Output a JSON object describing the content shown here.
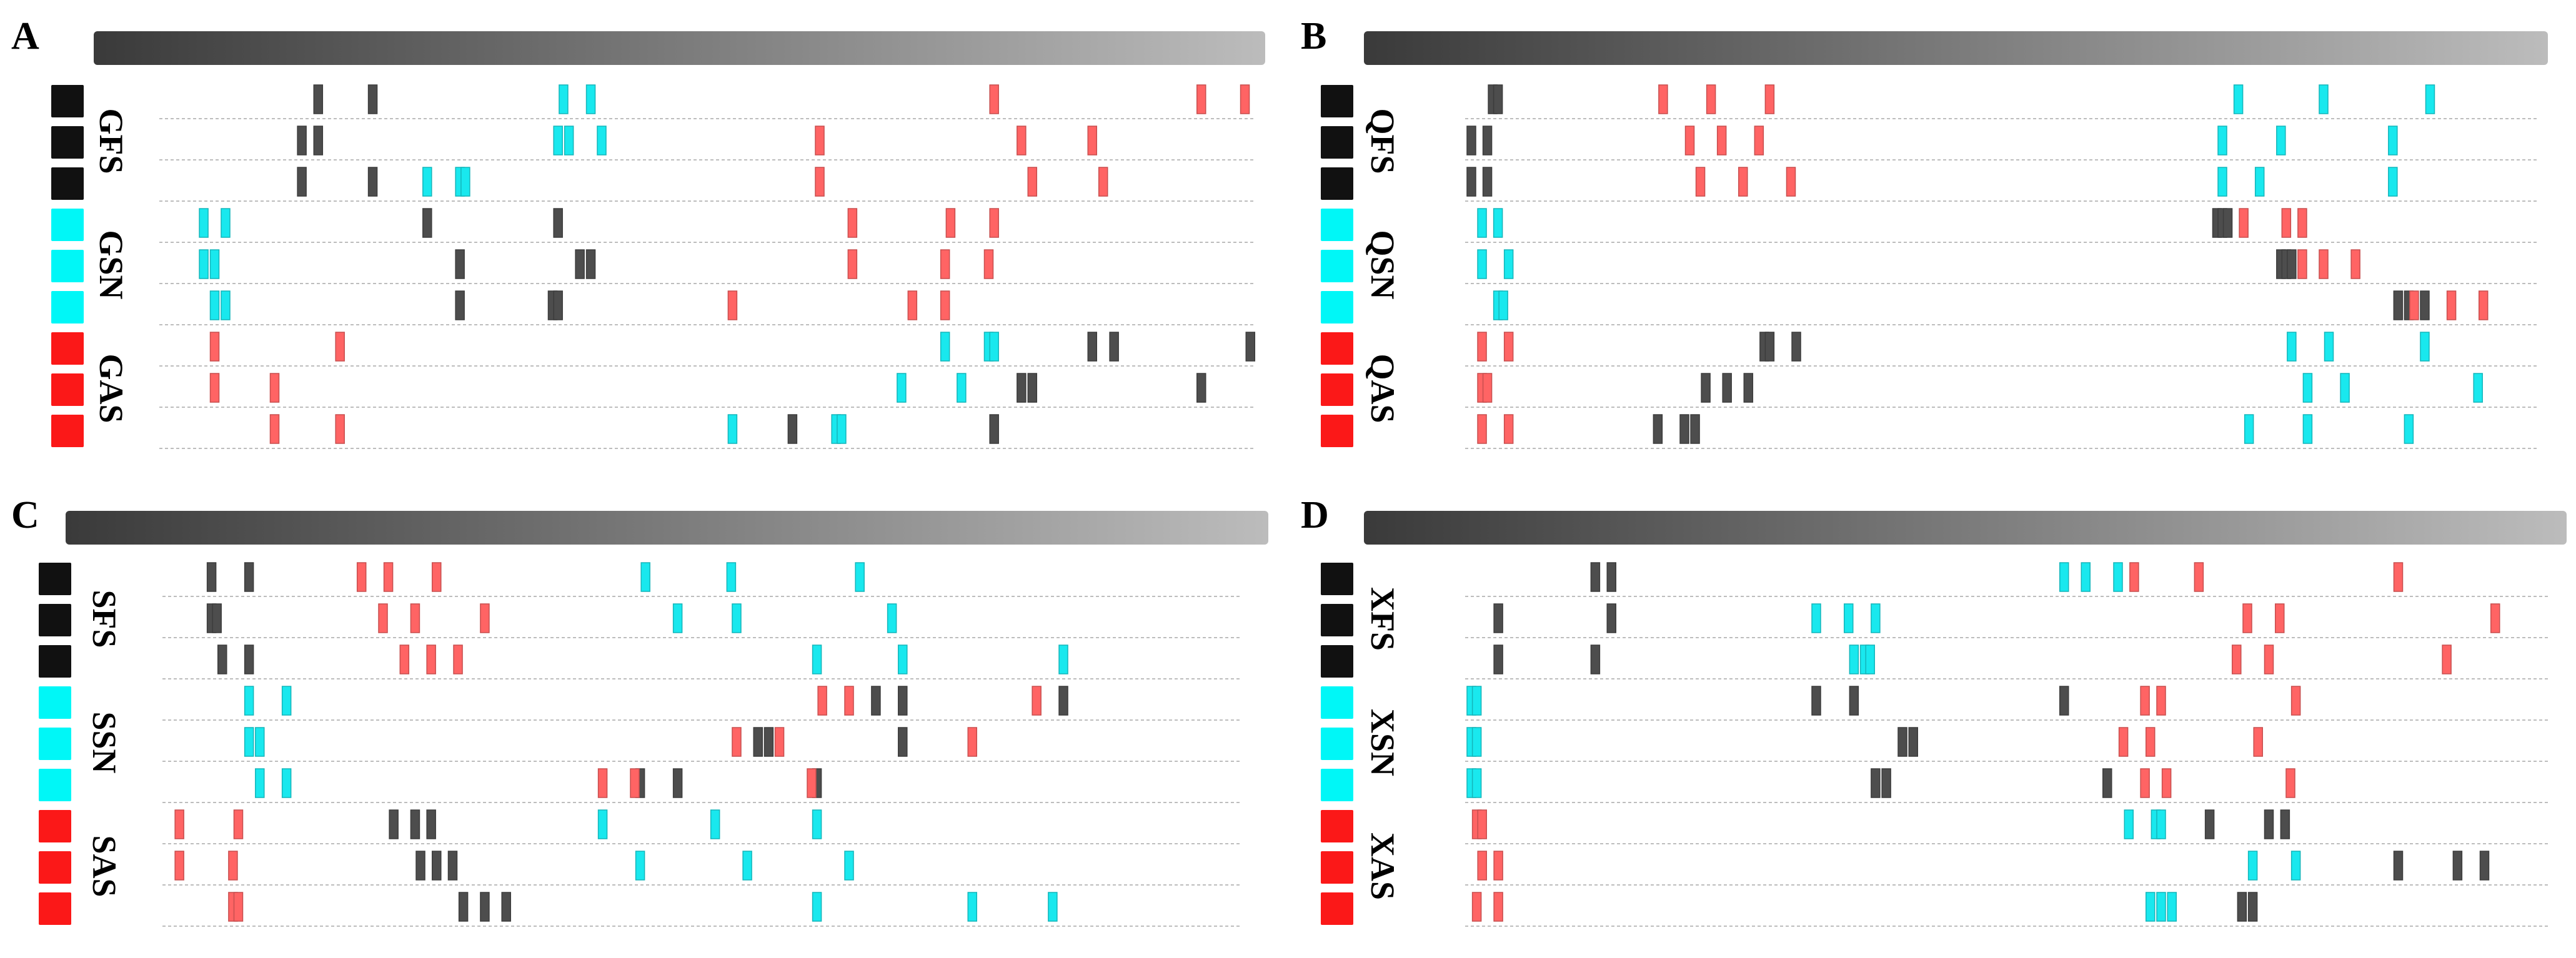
{
  "colors": {
    "black": "#111111",
    "cyan": "#00f7f7",
    "red": "#fb1818",
    "mark_black": "#4d4d4d",
    "mark_cyan": "#19e8ee",
    "mark_red": "#ff6464",
    "gradient_start": "#3a3a3a",
    "gradient_end": "#bcbcbc",
    "gridline": "#bdbdbd"
  },
  "chart_data": [
    {
      "type": "sequence-track",
      "panel": "A",
      "axis_range": [
        0,
        100
      ],
      "groups": [
        {
          "label": "GFS",
          "class": "black"
        },
        {
          "label": "GSN",
          "class": "cyan"
        },
        {
          "label": "GAS",
          "class": "red"
        }
      ],
      "rows": [
        {
          "class": "black",
          "black": [
            14,
            19
          ],
          "cyan": [
            36.5,
            39
          ],
          "red": [
            76,
            95,
            99
          ]
        },
        {
          "class": "black",
          "black": [
            12.5,
            14
          ],
          "cyan": [
            36,
            37,
            40
          ],
          "red": [
            60,
            78.5,
            85
          ]
        },
        {
          "class": "black",
          "black": [
            12.5,
            19
          ],
          "cyan": [
            24,
            27,
            27.5
          ],
          "red": [
            60,
            79.5,
            86
          ]
        },
        {
          "class": "cyan",
          "black": [
            24,
            36
          ],
          "cyan": [
            3.5,
            5.5
          ],
          "red": [
            63,
            72,
            76
          ]
        },
        {
          "class": "cyan",
          "black": [
            27,
            38,
            39
          ],
          "cyan": [
            3.5,
            4.5
          ],
          "red": [
            63,
            71.5,
            75.5
          ]
        },
        {
          "class": "cyan",
          "black": [
            27,
            35.5,
            36
          ],
          "cyan": [
            4.5,
            5.5
          ],
          "red": [
            52,
            68.5,
            71.5
          ]
        },
        {
          "class": "red",
          "black": [
            85,
            87,
            99.5
          ],
          "cyan": [
            71.5,
            75.5,
            76
          ],
          "red": [
            4.5,
            16
          ]
        },
        {
          "class": "red",
          "black": [
            78.5,
            79.5,
            95
          ],
          "cyan": [
            67.5,
            73
          ],
          "red": [
            4.5,
            10
          ]
        },
        {
          "class": "red",
          "black": [
            57.5,
            76
          ],
          "cyan": [
            52,
            61.5,
            62
          ],
          "red": [
            10,
            16
          ]
        }
      ]
    },
    {
      "type": "sequence-track",
      "panel": "B",
      "axis_range": [
        0,
        100
      ],
      "groups": [
        {
          "label": "QFS",
          "class": "black"
        },
        {
          "label": "QSN",
          "class": "cyan"
        },
        {
          "label": "QAS",
          "class": "red"
        }
      ],
      "rows": [
        {
          "class": "black",
          "black": [
            2,
            2.5
          ],
          "cyan": [
            72,
            80,
            90
          ],
          "red": [
            18,
            22.5,
            28
          ]
        },
        {
          "class": "black",
          "black": [
            0,
            1.5
          ],
          "cyan": [
            70.5,
            76,
            86.5
          ],
          "red": [
            20.5,
            23.5,
            27
          ]
        },
        {
          "class": "black",
          "black": [
            0,
            1.5
          ],
          "cyan": [
            70.5,
            74,
            86.5
          ],
          "red": [
            21.5,
            25.5,
            30
          ]
        },
        {
          "class": "cyan",
          "black": [
            70,
            70.5,
            71
          ],
          "cyan": [
            1,
            2.5
          ],
          "red": [
            72.5,
            76.5,
            78
          ]
        },
        {
          "class": "cyan",
          "black": [
            76,
            76.5,
            77
          ],
          "cyan": [
            1,
            3.5
          ],
          "red": [
            78,
            80,
            83
          ]
        },
        {
          "class": "cyan",
          "black": [
            87,
            88,
            89.5
          ],
          "cyan": [
            2.5,
            3
          ],
          "red": [
            88.5,
            92,
            95
          ]
        },
        {
          "class": "red",
          "black": [
            27.5,
            28,
            30.5
          ],
          "cyan": [
            77,
            80.5,
            89.5
          ],
          "red": [
            1,
            3.5
          ]
        },
        {
          "class": "red",
          "black": [
            22,
            24,
            26
          ],
          "cyan": [
            78.5,
            82,
            94.5
          ],
          "red": [
            1,
            1.5
          ]
        },
        {
          "class": "red",
          "black": [
            17.5,
            20,
            21
          ],
          "cyan": [
            73,
            78.5,
            88
          ],
          "red": [
            1,
            3.5
          ]
        }
      ]
    },
    {
      "type": "sequence-track",
      "panel": "C",
      "axis_range": [
        0,
        100
      ],
      "groups": [
        {
          "label": "SFS",
          "class": "black"
        },
        {
          "label": "SSN",
          "class": "cyan"
        },
        {
          "label": "SAS",
          "class": "red"
        }
      ],
      "rows": [
        {
          "class": "black",
          "black": [
            4,
            7.5
          ],
          "cyan": [
            44.5,
            52.5,
            64.5
          ],
          "red": [
            18,
            20.5,
            25
          ]
        },
        {
          "class": "black",
          "black": [
            4,
            4.5
          ],
          "cyan": [
            47.5,
            53,
            67.5
          ],
          "red": [
            20,
            23,
            29.5
          ]
        },
        {
          "class": "black",
          "black": [
            5,
            7.5
          ],
          "cyan": [
            60.5,
            68.5,
            83.5
          ],
          "red": [
            22,
            24.5,
            27
          ]
        },
        {
          "class": "cyan",
          "black": [
            66,
            68.5,
            83.5
          ],
          "cyan": [
            7.5,
            11
          ],
          "red": [
            61,
            63.5,
            81
          ]
        },
        {
          "class": "cyan",
          "black": [
            55,
            56,
            68.5
          ],
          "cyan": [
            7.5,
            8.5
          ],
          "red": [
            53,
            57,
            75
          ]
        },
        {
          "class": "cyan",
          "black": [
            44,
            47.5,
            60.5
          ],
          "cyan": [
            8.5,
            11
          ],
          "red": [
            40.5,
            43.5,
            60
          ]
        },
        {
          "class": "red",
          "black": [
            21,
            23,
            24.5
          ],
          "cyan": [
            40.5,
            51,
            60.5
          ],
          "red": [
            1,
            6.5
          ]
        },
        {
          "class": "red",
          "black": [
            23.5,
            25,
            26.5
          ],
          "cyan": [
            44,
            54,
            63.5
          ],
          "red": [
            1,
            6
          ]
        },
        {
          "class": "red",
          "black": [
            27.5,
            29.5,
            31.5
          ],
          "cyan": [
            60.5,
            75,
            82.5
          ],
          "red": [
            6,
            6.5
          ]
        }
      ]
    },
    {
      "type": "sequence-track",
      "panel": "D",
      "axis_range": [
        0,
        100
      ],
      "groups": [
        {
          "label": "XFS",
          "class": "black"
        },
        {
          "label": "XSN",
          "class": "cyan"
        },
        {
          "label": "XAS",
          "class": "red"
        }
      ],
      "rows": [
        {
          "class": "black",
          "black": [
            11.5,
            13
          ],
          "cyan": [
            55,
            57,
            60
          ],
          "red": [
            61.5,
            67.5,
            86
          ]
        },
        {
          "class": "black",
          "black": [
            2.5,
            13
          ],
          "cyan": [
            32,
            35,
            37.5
          ],
          "red": [
            72,
            75,
            95
          ]
        },
        {
          "class": "black",
          "black": [
            2.5,
            11.5
          ],
          "cyan": [
            35.5,
            36.5,
            37
          ],
          "red": [
            71,
            74,
            90.5
          ]
        },
        {
          "class": "cyan",
          "black": [
            32,
            35.5,
            55
          ],
          "cyan": [
            0,
            0.5
          ],
          "red": [
            62.5,
            64,
            76.5
          ]
        },
        {
          "class": "cyan",
          "black": [
            40,
            41
          ],
          "cyan": [
            0,
            0.5
          ],
          "red": [
            60.5,
            63,
            73
          ]
        },
        {
          "class": "cyan",
          "black": [
            37.5,
            38.5,
            59
          ],
          "cyan": [
            0,
            0.5
          ],
          "red": [
            62.5,
            64.5,
            76
          ]
        },
        {
          "class": "red",
          "black": [
            68.5,
            74,
            75.5
          ],
          "cyan": [
            61,
            63.5,
            64
          ],
          "red": [
            0.5,
            1
          ]
        },
        {
          "class": "red",
          "black": [
            86,
            91.5,
            94
          ],
          "cyan": [
            72.5,
            76.5
          ],
          "red": [
            1,
            2.5
          ]
        },
        {
          "class": "red",
          "black": [
            71.5,
            72.5
          ],
          "cyan": [
            63,
            64,
            65
          ],
          "red": [
            0.5,
            2.5
          ]
        }
      ]
    }
  ]
}
